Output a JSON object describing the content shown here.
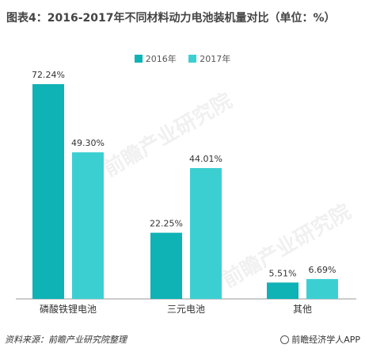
{
  "title": "图表4：2016-2017年不同材料动力电池装机量对比（单位：%）",
  "watermark": "前瞻产业研究院",
  "footer": {
    "source": "资料来源：前瞻产业研究院整理",
    "brand": "前瞻经济学人APP"
  },
  "colors": {
    "series2016": "#0fb2b5",
    "series2017": "#3ccfd2",
    "axis": "#999999"
  },
  "chart_data": {
    "type": "bar",
    "title": "图表4：2016-2017年不同材料动力电池装机量对比（单位：%）",
    "categories": [
      "磷酸铁锂电池",
      "三元电池",
      "其他"
    ],
    "series": [
      {
        "name": "2016年",
        "values": [
          72.24,
          22.25,
          5.51
        ],
        "labels": [
          "72.24%",
          "22.25%",
          "5.51%"
        ]
      },
      {
        "name": "2017年",
        "values": [
          49.3,
          44.01,
          6.69
        ],
        "labels": [
          "49.30%",
          "44.01%",
          "6.69%"
        ]
      }
    ],
    "ylim": [
      0,
      80
    ],
    "grid": false,
    "legend": "top-center"
  }
}
